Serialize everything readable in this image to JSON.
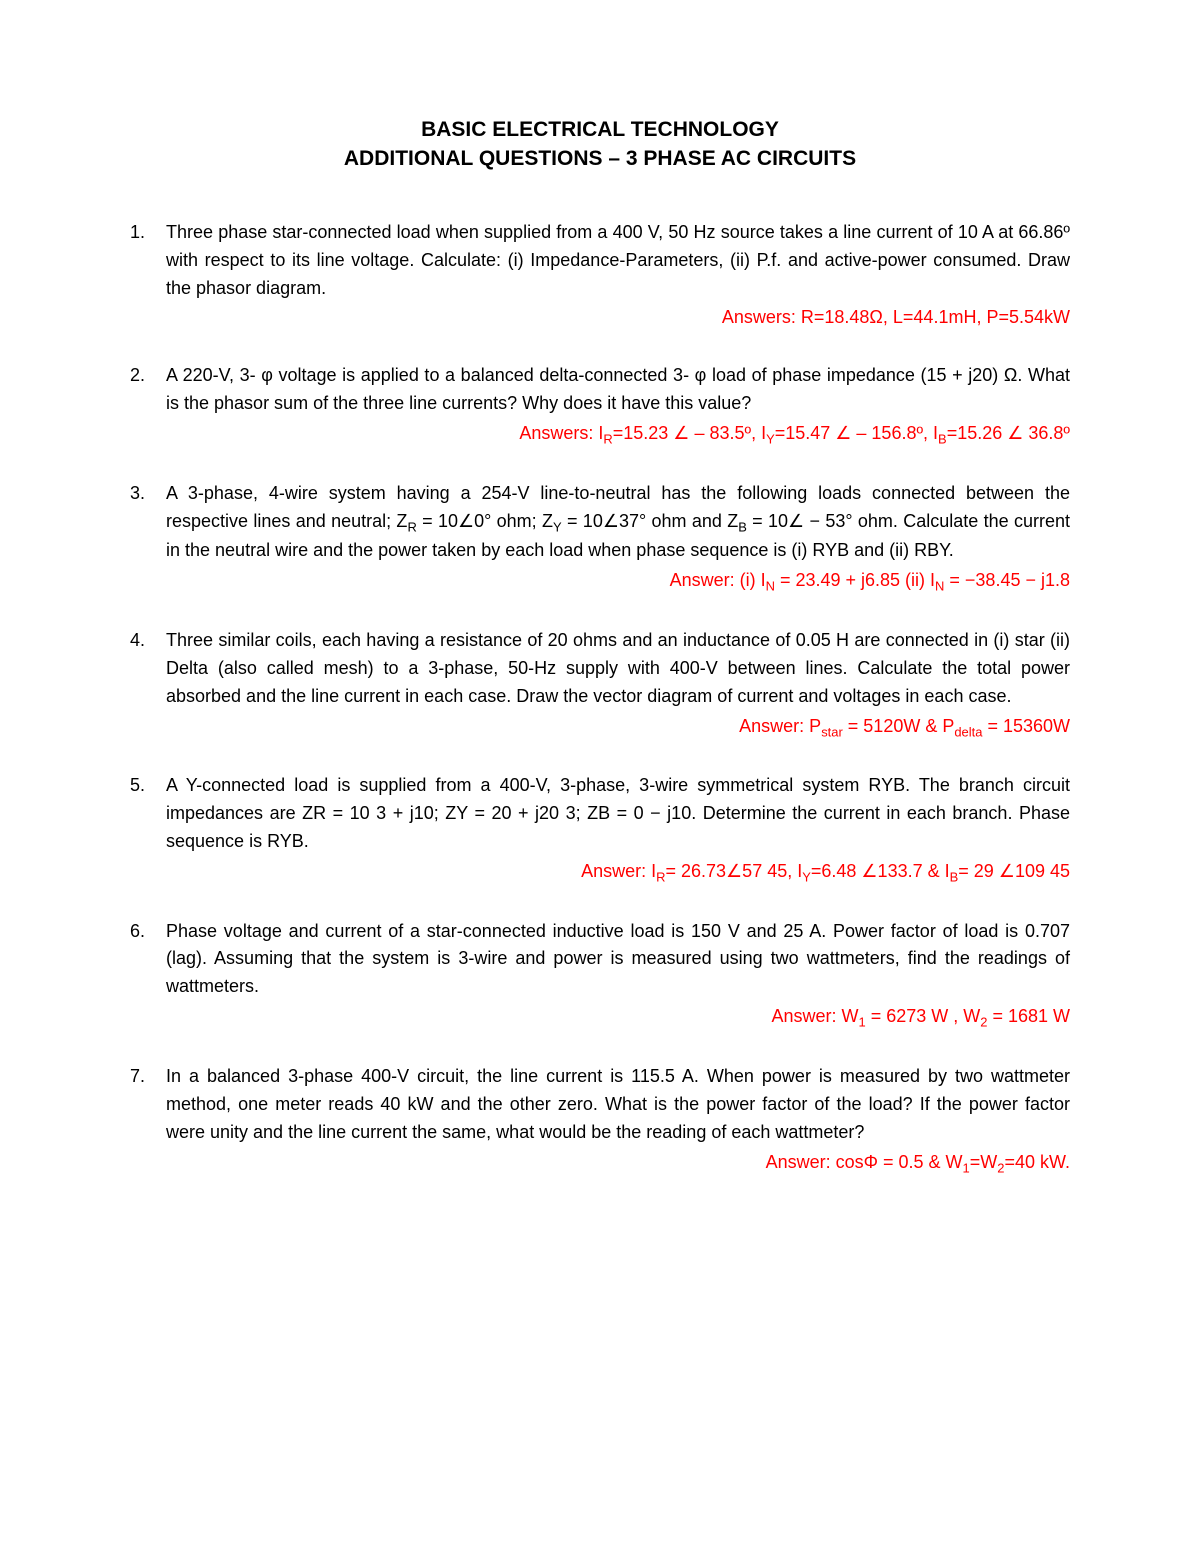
{
  "title": {
    "line1": "BASIC ELECTRICAL TECHNOLOGY",
    "line2": "ADDITIONAL QUESTIONS – 3 PHASE AC CIRCUITS"
  },
  "colors": {
    "text": "#000000",
    "answer": "#ff0000",
    "background": "#ffffff"
  },
  "questions": [
    {
      "num": "1.",
      "text": "Three phase star-connected load when supplied from a 400 V, 50 Hz source takes a line current of 10 A at 66.86º with respect to its line voltage. Calculate: (i) Impedance-Parameters, (ii) P.f. and active-power consumed. Draw the phasor diagram.",
      "answer": "Answers: R=18.48Ω, L=44.1mH, P=5.54kW"
    },
    {
      "num": "2.",
      "text": "A 220-V, 3- φ voltage is applied to a balanced delta-connected 3- φ load of phase impedance (15 + j20) Ω. What is the phasor sum of the three line currents? Why does it have this value?",
      "answer_html": "Answers: I<sub>R</sub>=15.23 ∠ – 83.5º, I<sub>Y</sub>=15.47 ∠ – 156.8º, I<sub>B</sub>=15.26 ∠ 36.8º"
    },
    {
      "num": "3.",
      "text_html": "A 3-phase, 4-wire system having a 254-V line-to-neutral has the following loads connected between the respective lines and neutral; Z<sub>R</sub> = 10∠0° ohm; Z<sub>Y</sub> = 10∠37° ohm and Z<sub>B</sub> = 10∠ − 53° ohm. Calculate the current in the neutral wire and the power taken by each load when phase sequence is (i) RYB and (ii) RBY.",
      "answer_html": "Answer: (i) I<sub>N</sub> = 23.49 + j6.85 (ii) I<sub>N</sub> = −38.45 − j1.8"
    },
    {
      "num": "4.",
      "text": "Three similar coils, each having a resistance of 20 ohms and an inductance of 0.05 H are connected in (i) star (ii) Delta (also called mesh) to a 3-phase, 50-Hz supply with 400-V between lines. Calculate the total power absorbed and the line current in each case. Draw the vector diagram of current and voltages in each case.",
      "answer_html": "Answer: P<sub>star</sub> = 5120W & P<sub>delta</sub> = 15360W"
    },
    {
      "num": "5.",
      "text": "A Y-connected load is supplied from a 400-V, 3-phase, 3-wire symmetrical system RYB. The branch circuit impedances are ZR = 10 3 + j10; ZY = 20 + j20 3; ZB = 0 − j10. Determine the current in each branch. Phase sequence is RYB.",
      "answer_html": "Answer: I<sub>R</sub>= 26.73∠57 45, I<sub>Y</sub>=6.48 ∠133.7 & I<sub>B</sub>= 29 ∠109 45"
    },
    {
      "num": "6.",
      "text": "Phase voltage and current of a star-connected inductive load is 150 V and 25 A. Power factor of load is 0.707 (lag). Assuming that the system is 3-wire and power is measured using two wattmeters, find the readings of wattmeters.",
      "answer_html": "Answer: W<sub>1</sub> = 6273 W ,  W<sub>2</sub> = 1681 W"
    },
    {
      "num": "7.",
      "text": "In a balanced 3-phase 400-V circuit, the line current is 115.5 A. When power is measured by two wattmeter method, one meter reads 40 kW and the other zero. What is the power factor of the load? If the power factor were unity and the line current the same, what would be the reading of each wattmeter?",
      "answer_html": "Answer: cosΦ = 0.5 & W<sub>1</sub>=W<sub>2</sub>=40 kW."
    }
  ]
}
